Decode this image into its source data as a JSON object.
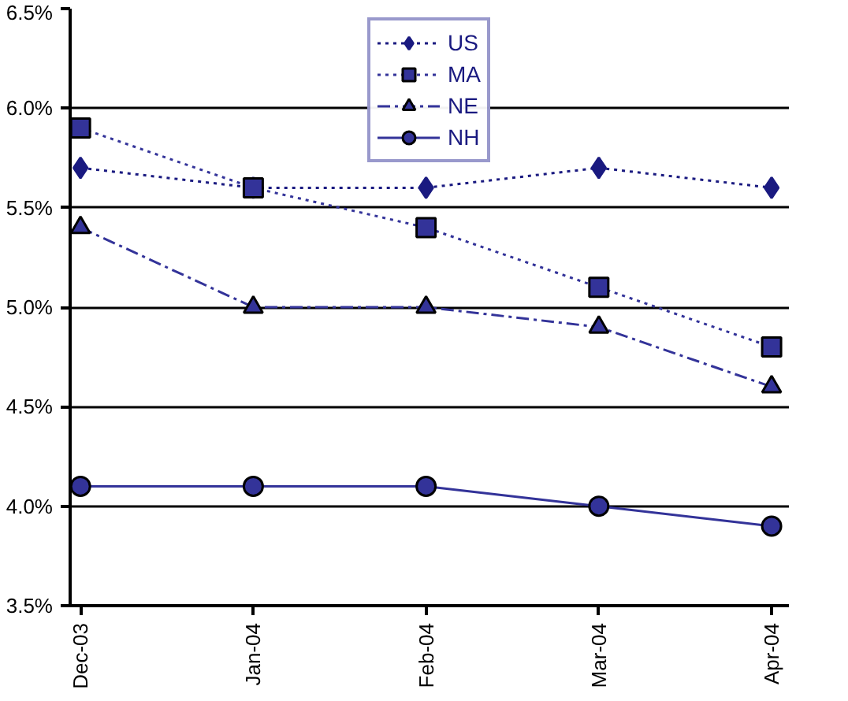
{
  "chart_data": {
    "type": "line",
    "categories": [
      "Dec-03",
      "Jan-04",
      "Feb-04",
      "Mar-04",
      "Apr-04"
    ],
    "series": [
      {
        "name": "US",
        "color": "#1a1a80",
        "values": [
          5.7,
          5.6,
          5.6,
          5.7,
          5.6
        ],
        "marker": "diamond",
        "line_style": "dotted"
      },
      {
        "name": "MA",
        "color": "#333399",
        "values": [
          5.9,
          5.6,
          5.4,
          5.1,
          4.8
        ],
        "marker": "square",
        "line_style": "dotted"
      },
      {
        "name": "NE",
        "color": "#333399",
        "values": [
          5.4,
          5.0,
          5.0,
          4.9,
          4.6
        ],
        "marker": "triangle",
        "line_style": "dashed"
      },
      {
        "name": "NH",
        "color": "#333399",
        "values": [
          4.1,
          4.1,
          4.1,
          4.0,
          3.9
        ],
        "marker": "circle",
        "line_style": "solid"
      }
    ],
    "ylim": [
      3.5,
      6.5
    ],
    "yticks": [
      {
        "value": 3.5,
        "label": "3.5%"
      },
      {
        "value": 4.0,
        "label": "4.0%"
      },
      {
        "value": 4.5,
        "label": "4.5%"
      },
      {
        "value": 5.0,
        "label": "5.0%"
      },
      {
        "value": 5.5,
        "label": "5.5%"
      },
      {
        "value": 6.0,
        "label": "6.0%"
      },
      {
        "value": 6.5,
        "label": "6.5%"
      }
    ],
    "grid": "y",
    "legend": "top"
  }
}
